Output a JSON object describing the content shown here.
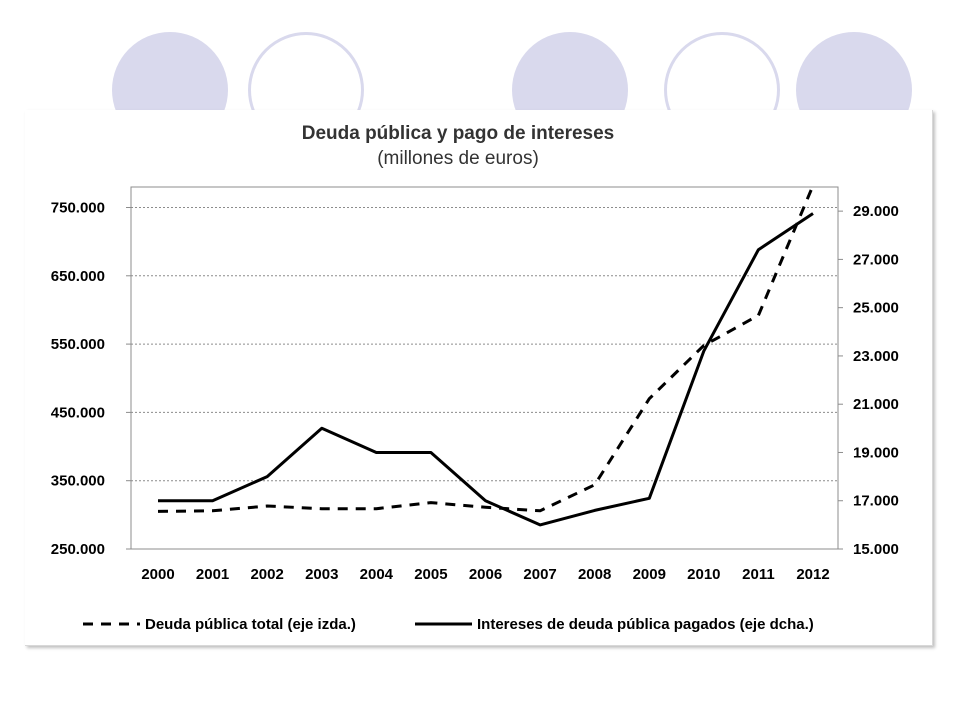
{
  "decor": {
    "circles": [
      "filled",
      "outline",
      "filled",
      "outline",
      "filled"
    ],
    "circle_color": "#d9d9ed"
  },
  "chart_data": {
    "type": "line",
    "title": "Deuda pública y pago de intereses",
    "subtitle": "(millones de euros)",
    "categories": [
      "2000",
      "2001",
      "2002",
      "2003",
      "2004",
      "2005",
      "2006",
      "2007",
      "2008",
      "2009",
      "2010",
      "2011",
      "2012"
    ],
    "y_left": {
      "range": [
        250000,
        780000
      ],
      "ticks": [
        250000,
        350000,
        450000,
        550000,
        650000,
        750000
      ],
      "tick_labels": [
        "250.000",
        "350.000",
        "450.000",
        "550.000",
        "650.000",
        "750.000"
      ]
    },
    "y_right": {
      "range": [
        15000,
        30000
      ],
      "ticks": [
        15000,
        17000,
        19000,
        21000,
        23000,
        25000,
        27000,
        29000
      ],
      "tick_labels": [
        "15.000",
        "17.000",
        "19.000",
        "21.000",
        "23.000",
        "25.000",
        "27.000",
        "29.000"
      ]
    },
    "grid": true,
    "legend_position": "bottom",
    "series": [
      {
        "name": "Deuda pública total (eje izda.)",
        "axis": "left",
        "style": "dashed",
        "color": "#000000",
        "values": [
          305000,
          306000,
          313000,
          309000,
          309000,
          318000,
          311000,
          306000,
          344000,
          470000,
          548000,
          592000,
          782000
        ]
      },
      {
        "name": "Intereses de deuda pública pagados (eje dcha.)",
        "axis": "right",
        "style": "solid",
        "color": "#000000",
        "values": [
          17000,
          17000,
          18000,
          20000,
          19000,
          19000,
          17000,
          16000,
          16600,
          17100,
          23200,
          27400,
          28900
        ]
      }
    ]
  }
}
